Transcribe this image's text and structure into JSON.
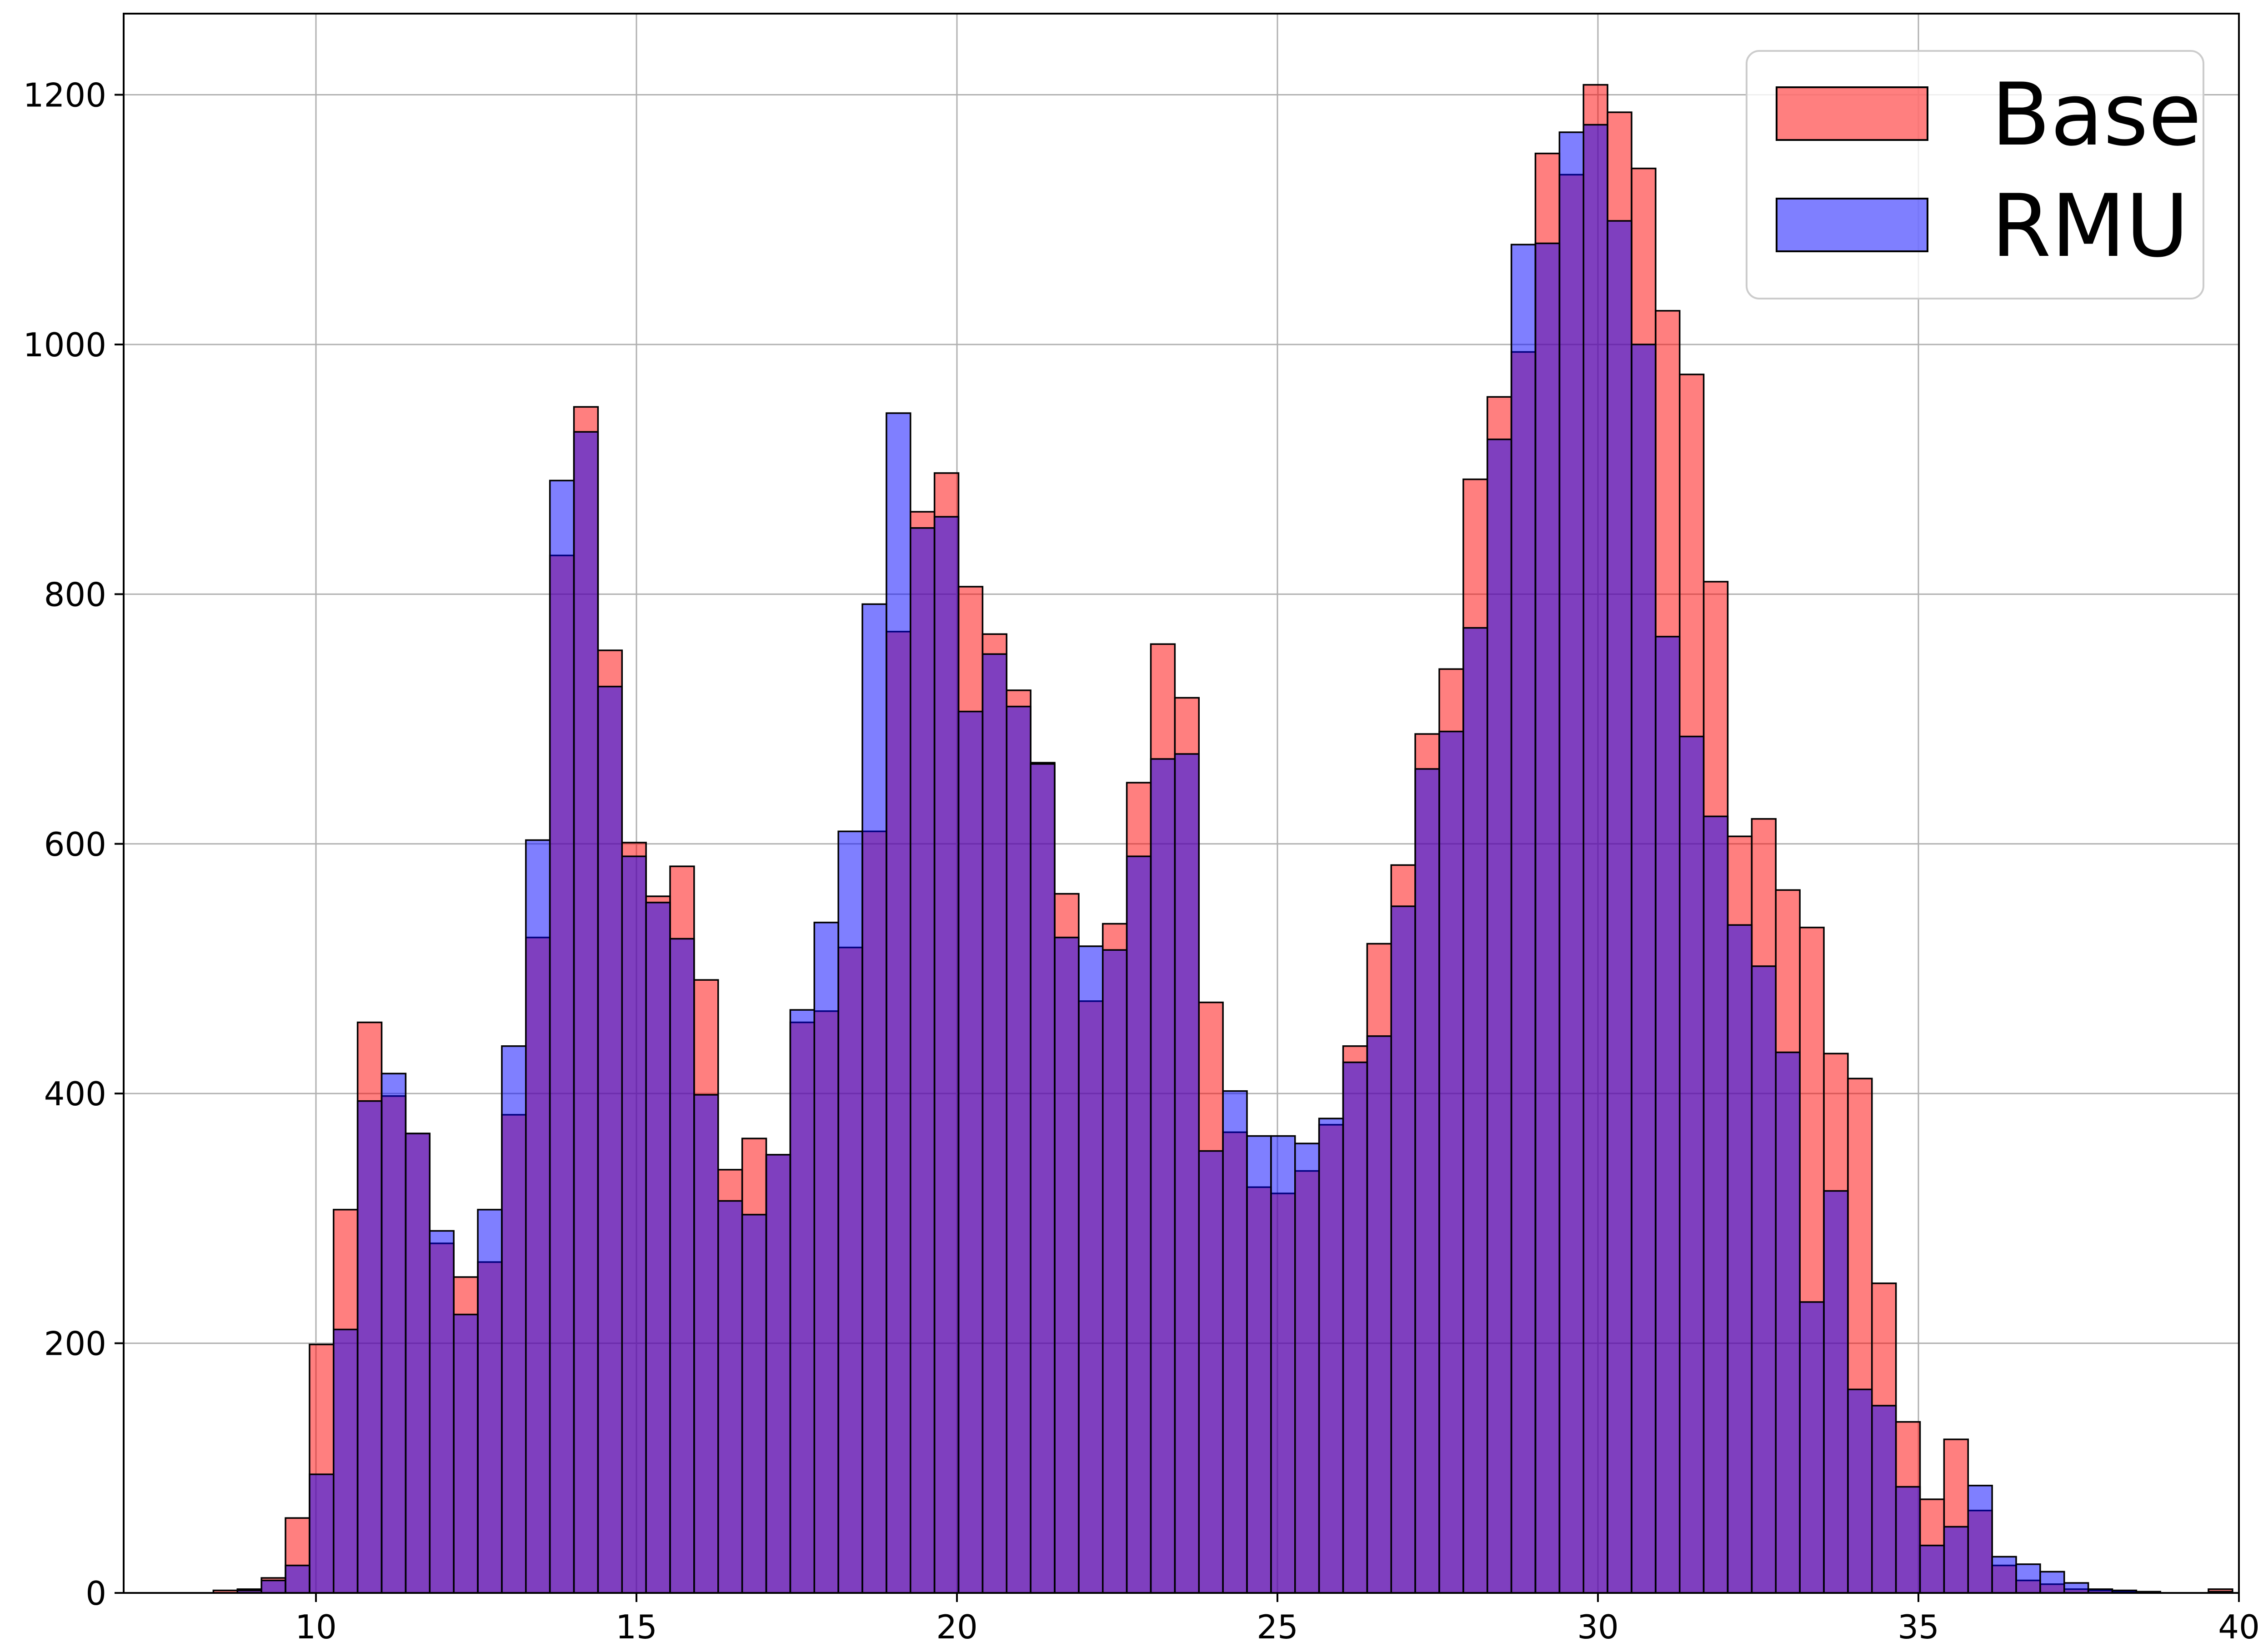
{
  "chart_data": {
    "type": "histogram",
    "title": "",
    "xlabel": "",
    "ylabel": "",
    "xlim": [
      7,
      40
    ],
    "ylim": [
      0,
      1265
    ],
    "xticks": [
      "10",
      "15",
      "20",
      "25",
      "30",
      "35",
      "40"
    ],
    "yticks": [
      "0",
      "200",
      "400",
      "600",
      "800",
      "1000",
      "1200"
    ],
    "grid": true,
    "legend_position": "top-right",
    "bin_start": 8.4,
    "bin_width": 0.375,
    "series": [
      {
        "name": "Base",
        "color": "#ff7f7f",
        "values": [
          2,
          3,
          12,
          60,
          199,
          307,
          457,
          398,
          368,
          280,
          253,
          265,
          383,
          525,
          831,
          950,
          755,
          601,
          558,
          582,
          491,
          339,
          364,
          351,
          457,
          466,
          517,
          610,
          770,
          866,
          897,
          806,
          768,
          723,
          665,
          560,
          474,
          536,
          649,
          760,
          717,
          473,
          369,
          325,
          320,
          338,
          375,
          438,
          520,
          583,
          688,
          740,
          892,
          958,
          994,
          1153,
          1136,
          1208,
          1186,
          1141,
          1027,
          976,
          810,
          606,
          620,
          563,
          533,
          432,
          412,
          248,
          137,
          75,
          123,
          66,
          22,
          10,
          7,
          3,
          2,
          1,
          0,
          0,
          0,
          3,
          0,
          0,
          1,
          0
        ]
      },
      {
        "name": "RMU",
        "color": "#7f7fff",
        "values": [
          0,
          2,
          10,
          22,
          95,
          211,
          394,
          416,
          368,
          290,
          223,
          307,
          438,
          603,
          891,
          930,
          726,
          590,
          553,
          524,
          399,
          314,
          303,
          351,
          467,
          537,
          610,
          792,
          945,
          853,
          862,
          706,
          752,
          710,
          664,
          525,
          518,
          515,
          590,
          668,
          672,
          354,
          402,
          366,
          366,
          360,
          380,
          425,
          446,
          550,
          660,
          690,
          773,
          924,
          1080,
          1081,
          1170,
          1176,
          1099,
          1000,
          766,
          686,
          622,
          535,
          502,
          433,
          233,
          322,
          163,
          150,
          85,
          38,
          53,
          86,
          29,
          23,
          17,
          8,
          3,
          2,
          1,
          0,
          0,
          1,
          0,
          0,
          0,
          0
        ]
      }
    ]
  }
}
